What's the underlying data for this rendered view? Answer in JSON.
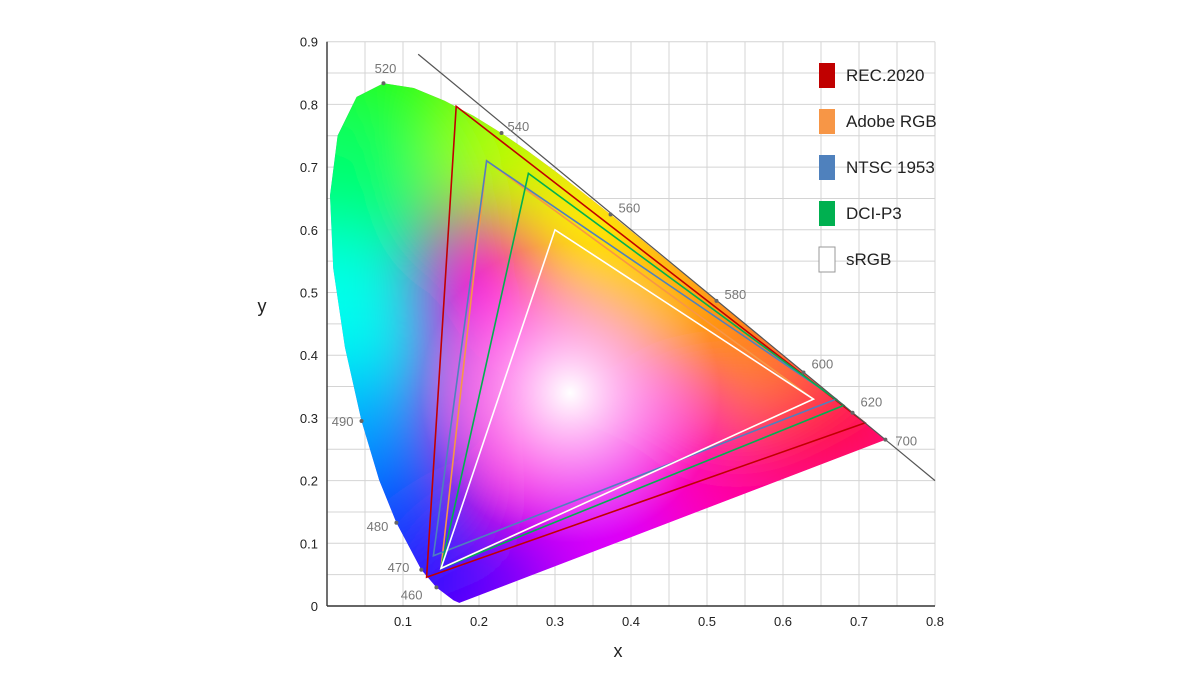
{
  "chart_data": {
    "type": "scatter",
    "xlabel": "x",
    "ylabel": "y",
    "xlim": [
      0,
      0.8
    ],
    "ylim": [
      0,
      0.9
    ],
    "x_ticks": [
      "0.1",
      "0.2",
      "0.3",
      "0.4",
      "0.5",
      "0.6",
      "0.7",
      "0.8"
    ],
    "y_ticks": [
      "0",
      "0.1",
      "0.2",
      "0.3",
      "0.4",
      "0.5",
      "0.6",
      "0.7",
      "0.8",
      "0.9"
    ],
    "grid": true,
    "legend_position": "top-right",
    "spectral_locus": [
      [
        0.1741,
        0.005
      ],
      [
        0.1666,
        0.0089
      ],
      [
        0.144,
        0.0297
      ],
      [
        0.1241,
        0.0578
      ],
      [
        0.0913,
        0.1327
      ],
      [
        0.0687,
        0.2007
      ],
      [
        0.0454,
        0.295
      ],
      [
        0.0235,
        0.4127
      ],
      [
        0.0082,
        0.5384
      ],
      [
        0.0039,
        0.6548
      ],
      [
        0.0139,
        0.7502
      ],
      [
        0.0389,
        0.812
      ],
      [
        0.0743,
        0.8338
      ],
      [
        0.1142,
        0.8262
      ],
      [
        0.1547,
        0.8059
      ],
      [
        0.1929,
        0.7816
      ],
      [
        0.2296,
        0.7543
      ],
      [
        0.2658,
        0.7243
      ],
      [
        0.3016,
        0.6923
      ],
      [
        0.3373,
        0.6589
      ],
      [
        0.3731,
        0.6245
      ],
      [
        0.4087,
        0.5896
      ],
      [
        0.4441,
        0.5547
      ],
      [
        0.4788,
        0.5202
      ],
      [
        0.5125,
        0.4866
      ],
      [
        0.5448,
        0.4544
      ],
      [
        0.5752,
        0.4242
      ],
      [
        0.6029,
        0.3965
      ],
      [
        0.627,
        0.3725
      ],
      [
        0.6482,
        0.3514
      ],
      [
        0.6658,
        0.334
      ],
      [
        0.6915,
        0.3083
      ],
      [
        0.7347,
        0.2653
      ]
    ],
    "wavelength_labels": [
      {
        "label": "460",
        "x": 0.144,
        "y": 0.0297
      },
      {
        "label": "470",
        "x": 0.1241,
        "y": 0.0578
      },
      {
        "label": "480",
        "x": 0.0913,
        "y": 0.1327
      },
      {
        "label": "490",
        "x": 0.0454,
        "y": 0.295
      },
      {
        "label": "520",
        "x": 0.0743,
        "y": 0.8338
      },
      {
        "label": "540",
        "x": 0.2296,
        "y": 0.7543
      },
      {
        "label": "560",
        "x": 0.3731,
        "y": 0.6245
      },
      {
        "label": "580",
        "x": 0.5125,
        "y": 0.4866
      },
      {
        "label": "600",
        "x": 0.627,
        "y": 0.3725
      },
      {
        "label": "620",
        "x": 0.6915,
        "y": 0.3083
      },
      {
        "label": "700",
        "x": 0.7347,
        "y": 0.2653
      }
    ],
    "series": [
      {
        "name": "REC.2020",
        "color": "#c00000",
        "points": [
          [
            0.708,
            0.292
          ],
          [
            0.17,
            0.797
          ],
          [
            0.131,
            0.046
          ]
        ]
      },
      {
        "name": "Adobe RGB",
        "color": "#f79646",
        "points": [
          [
            0.64,
            0.33
          ],
          [
            0.21,
            0.71
          ],
          [
            0.15,
            0.06
          ]
        ]
      },
      {
        "name": "NTSC 1953",
        "color": "#4f81bd",
        "points": [
          [
            0.67,
            0.33
          ],
          [
            0.21,
            0.71
          ],
          [
            0.14,
            0.08
          ]
        ]
      },
      {
        "name": "DCI-P3",
        "color": "#00b050",
        "points": [
          [
            0.68,
            0.32
          ],
          [
            0.265,
            0.69
          ],
          [
            0.15,
            0.06
          ]
        ]
      },
      {
        "name": "sRGB",
        "color": "#ffffff",
        "points": [
          [
            0.64,
            0.33
          ],
          [
            0.3,
            0.6
          ],
          [
            0.15,
            0.06
          ]
        ]
      }
    ]
  }
}
